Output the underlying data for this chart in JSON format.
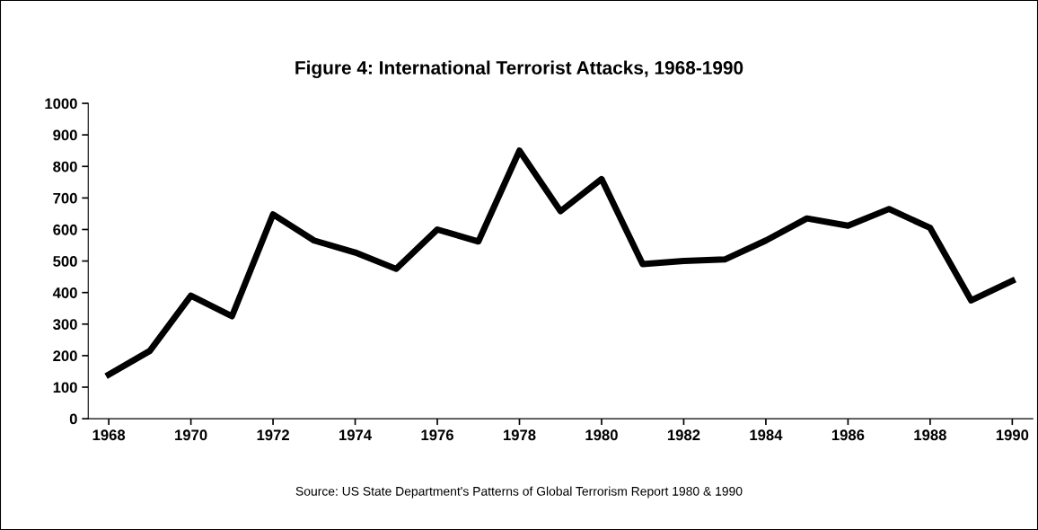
{
  "chart_data": {
    "type": "line",
    "title": "Figure 4: International Terrorist Attacks, 1968-1990",
    "x": [
      1968,
      1969,
      1970,
      1971,
      1972,
      1973,
      1974,
      1975,
      1976,
      1977,
      1978,
      1979,
      1980,
      1981,
      1982,
      1983,
      1984,
      1985,
      1986,
      1987,
      1988,
      1989,
      1990
    ],
    "series": [
      {
        "color": "#000000",
        "values": [
          140,
          215,
          390,
          325,
          648,
          565,
          527,
          475,
          600,
          562,
          850,
          658,
          760,
          490,
          500,
          505,
          565,
          635,
          612,
          665,
          605,
          375,
          437
        ]
      }
    ],
    "xlim": [
      1967.5,
      1990.5
    ],
    "xticks": [
      1968,
      1970,
      1972,
      1974,
      1976,
      1978,
      1980,
      1982,
      1984,
      1986,
      1988,
      1990
    ],
    "ylim": [
      0,
      1000
    ],
    "yticks": [
      0,
      100,
      200,
      300,
      400,
      500,
      600,
      700,
      800,
      900,
      1000
    ],
    "grid": false,
    "legend": false,
    "marker": "none",
    "line_style": "solid",
    "annotations": [
      "Source: US State Department's Patterns of Global Terrorism Report 1980 & 1990"
    ]
  }
}
